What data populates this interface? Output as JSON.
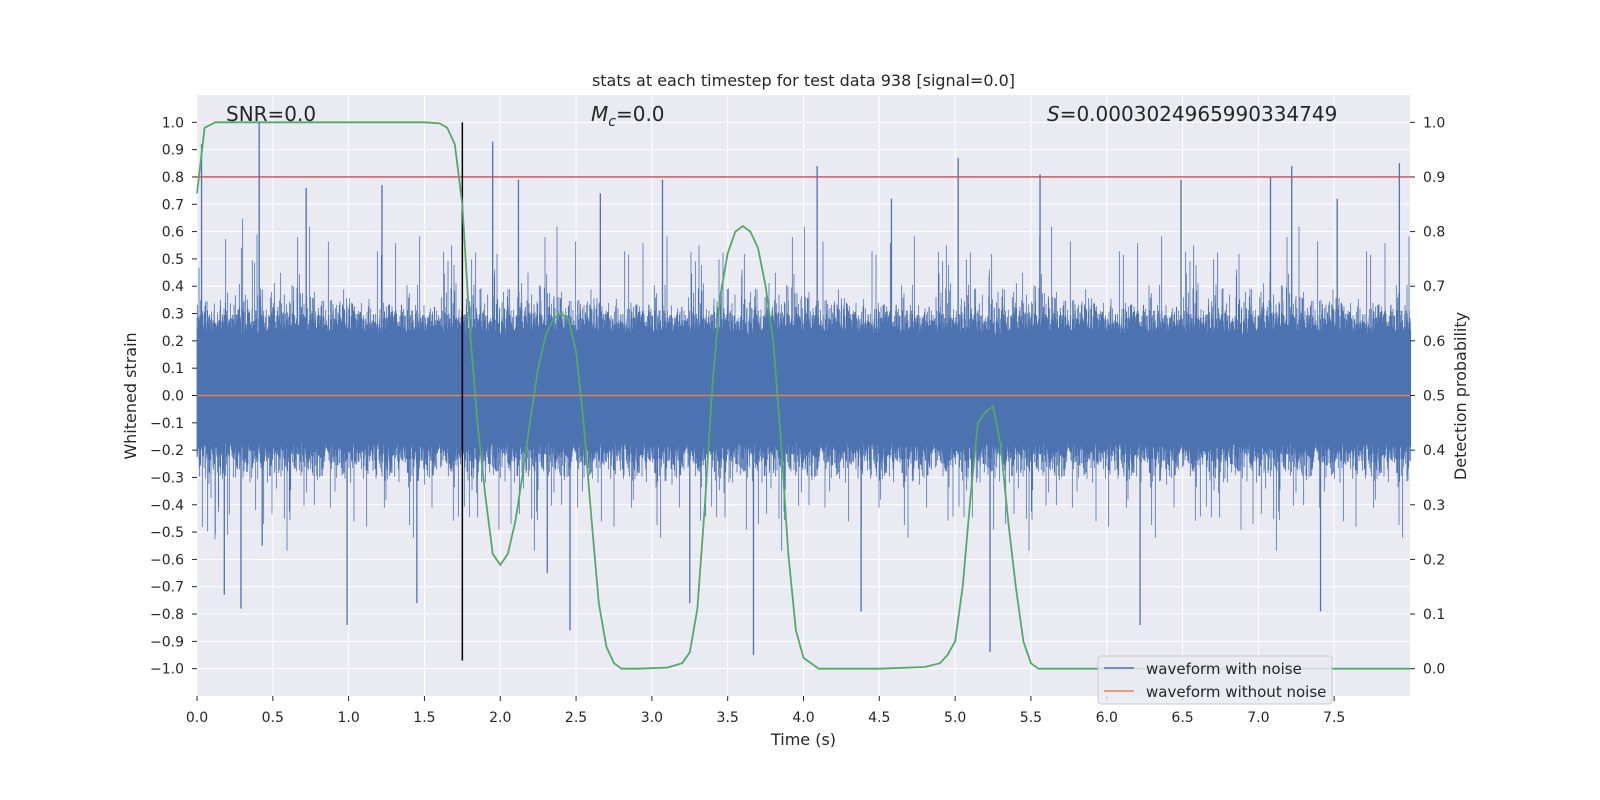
{
  "chart_data": {
    "type": "line",
    "title": "stats at each timestep for test data 938 [signal=0.0]",
    "xlabel": "Time (s)",
    "ylabel": "Whitened strain",
    "y2label": "Detection probability",
    "xlim": [
      0.0,
      8.0
    ],
    "ylim": [
      -1.1,
      1.1
    ],
    "y2lim": [
      -0.05,
      1.05
    ],
    "x_ticks": [
      "0.0",
      "0.5",
      "1.0",
      "1.5",
      "2.0",
      "2.5",
      "3.0",
      "3.5",
      "4.0",
      "4.5",
      "5.0",
      "5.5",
      "6.0",
      "6.5",
      "7.0",
      "7.5"
    ],
    "y_ticks": [
      "1.0",
      "0.9",
      "0.8",
      "0.7",
      "0.6",
      "0.5",
      "0.4",
      "0.3",
      "0.2",
      "0.1",
      "0.0",
      "-0.1",
      "-0.2",
      "-0.3",
      "-0.4",
      "-0.5",
      "-0.6",
      "-0.7",
      "-0.8",
      "-0.9",
      "-1.0"
    ],
    "y2_ticks": [
      "1.0",
      "0.9",
      "0.8",
      "0.7",
      "0.6",
      "0.5",
      "0.4",
      "0.3",
      "0.2",
      "0.1",
      "0.0"
    ],
    "grid": true,
    "legend_position": "lower-right",
    "annotations": {
      "snr": "SNR=0.0",
      "mc_symbol": "M",
      "mc_sub": "c",
      "mc_value": "=0.0",
      "s_symbol": "S",
      "s_value": "=0.0003024965990334749"
    },
    "series": [
      {
        "name": "waveform with noise",
        "color": "#4c72b0",
        "kind": "noise",
        "core_band": [
          -0.17,
          0.22
        ],
        "spikes": [
          {
            "x": 0.03,
            "y": 0.92
          },
          {
            "x": 0.41,
            "y": 1.0
          },
          {
            "x": 0.43,
            "y": -0.55
          },
          {
            "x": 0.18,
            "y": -0.73
          },
          {
            "x": 0.29,
            "y": -0.78
          },
          {
            "x": 0.72,
            "y": 0.76
          },
          {
            "x": 0.99,
            "y": -0.84
          },
          {
            "x": 1.22,
            "y": 0.77
          },
          {
            "x": 1.45,
            "y": -0.76
          },
          {
            "x": 1.95,
            "y": 0.93
          },
          {
            "x": 2.12,
            "y": 0.79
          },
          {
            "x": 2.31,
            "y": -0.65
          },
          {
            "x": 2.46,
            "y": -0.86
          },
          {
            "x": 2.66,
            "y": 0.74
          },
          {
            "x": 3.07,
            "y": 0.79
          },
          {
            "x": 3.25,
            "y": -0.76
          },
          {
            "x": 3.67,
            "y": -0.95
          },
          {
            "x": 4.09,
            "y": 0.84
          },
          {
            "x": 4.38,
            "y": -0.79
          },
          {
            "x": 4.58,
            "y": 0.72
          },
          {
            "x": 5.02,
            "y": 0.87
          },
          {
            "x": 5.23,
            "y": -0.94
          },
          {
            "x": 5.56,
            "y": 0.81
          },
          {
            "x": 6.22,
            "y": -0.84
          },
          {
            "x": 6.49,
            "y": 0.79
          },
          {
            "x": 7.08,
            "y": 0.8
          },
          {
            "x": 7.22,
            "y": 0.84
          },
          {
            "x": 7.41,
            "y": -0.79
          },
          {
            "x": 7.52,
            "y": 0.72
          },
          {
            "x": 7.93,
            "y": 0.85
          }
        ]
      },
      {
        "name": "waveform without noise",
        "color": "#dd8452",
        "kind": "constant",
        "value": 0.0
      },
      {
        "name": "detection probability",
        "color": "#55a868",
        "axis": "right",
        "x": [
          0.0,
          0.05,
          0.12,
          0.2,
          0.4,
          0.8,
          1.2,
          1.5,
          1.6,
          1.65,
          1.7,
          1.75,
          1.8,
          1.85,
          1.9,
          1.95,
          2.0,
          2.05,
          2.1,
          2.15,
          2.2,
          2.25,
          2.3,
          2.35,
          2.4,
          2.45,
          2.5,
          2.55,
          2.6,
          2.65,
          2.7,
          2.75,
          2.8,
          2.9,
          3.1,
          3.2,
          3.25,
          3.3,
          3.35,
          3.4,
          3.45,
          3.5,
          3.55,
          3.6,
          3.65,
          3.7,
          3.75,
          3.8,
          3.85,
          3.9,
          3.95,
          4.0,
          4.1,
          4.5,
          4.8,
          4.9,
          4.95,
          5.0,
          5.05,
          5.1,
          5.15,
          5.2,
          5.25,
          5.3,
          5.35,
          5.4,
          5.45,
          5.5,
          5.55,
          6.0,
          7.0,
          8.0
        ],
        "y": [
          0.87,
          0.99,
          1.0,
          1.0,
          1.0,
          1.0,
          1.0,
          1.0,
          0.998,
          0.99,
          0.96,
          0.85,
          0.62,
          0.45,
          0.32,
          0.21,
          0.19,
          0.21,
          0.27,
          0.36,
          0.46,
          0.55,
          0.61,
          0.64,
          0.65,
          0.64,
          0.58,
          0.45,
          0.28,
          0.12,
          0.04,
          0.01,
          0.0,
          0.0,
          0.002,
          0.01,
          0.03,
          0.11,
          0.3,
          0.52,
          0.68,
          0.76,
          0.8,
          0.81,
          0.8,
          0.77,
          0.7,
          0.6,
          0.42,
          0.21,
          0.07,
          0.02,
          0.0,
          0.0,
          0.003,
          0.01,
          0.025,
          0.05,
          0.15,
          0.31,
          0.45,
          0.47,
          0.48,
          0.41,
          0.27,
          0.15,
          0.05,
          0.01,
          0.0,
          0.0,
          0.0,
          0.0
        ]
      }
    ],
    "reference_lines": {
      "threshold_value": 0.9,
      "threshold_color": "#c44e52",
      "threshold_axis": "right",
      "vertical_x": 1.75,
      "vertical_color": "#000000"
    }
  }
}
